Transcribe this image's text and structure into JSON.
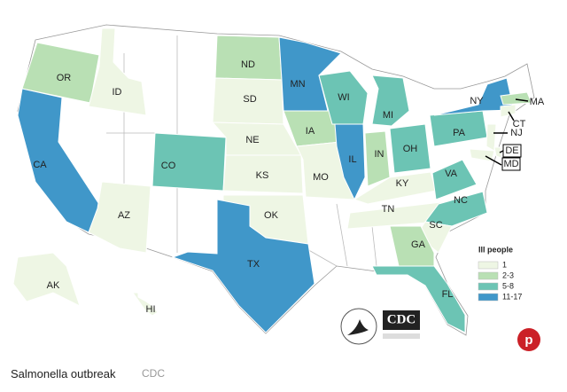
{
  "map": {
    "states": [
      {
        "label": "OR",
        "color": "#b9e0b4"
      },
      {
        "label": "ID",
        "color": "#eef6e4"
      },
      {
        "label": "CA",
        "color": "#4097c9"
      },
      {
        "label": "AZ",
        "color": "#eef6e4"
      },
      {
        "label": "CO",
        "color": "#6cc4b4"
      },
      {
        "label": "ND",
        "color": "#b9e0b4"
      },
      {
        "label": "SD",
        "color": "#eef6e4"
      },
      {
        "label": "NE",
        "color": "#eef6e4"
      },
      {
        "label": "KS",
        "color": "#eef6e4"
      },
      {
        "label": "OK",
        "color": "#eef6e4"
      },
      {
        "label": "TX",
        "color": "#4097c9"
      },
      {
        "label": "MN",
        "color": "#4097c9"
      },
      {
        "label": "IA",
        "color": "#b9e0b4"
      },
      {
        "label": "MO",
        "color": "#eef6e4"
      },
      {
        "label": "WI",
        "color": "#6cc4b4"
      },
      {
        "label": "IL",
        "color": "#4097c9"
      },
      {
        "label": "MI",
        "color": "#6cc4b4"
      },
      {
        "label": "IN",
        "color": "#b9e0b4"
      },
      {
        "label": "OH",
        "color": "#6cc4b4"
      },
      {
        "label": "KY",
        "color": "#eef6e4"
      },
      {
        "label": "TN",
        "color": "#eef6e4"
      },
      {
        "label": "VA",
        "color": "#6cc4b4"
      },
      {
        "label": "NC",
        "color": "#6cc4b4"
      },
      {
        "label": "SC",
        "color": "#eef6e4"
      },
      {
        "label": "GA",
        "color": "#b9e0b4"
      },
      {
        "label": "FL",
        "color": "#6cc4b4"
      },
      {
        "label": "PA",
        "color": "#6cc4b4"
      },
      {
        "label": "NY",
        "color": "#4097c9"
      },
      {
        "label": "NJ",
        "color": "#eef6e4"
      },
      {
        "label": "DE",
        "color": "#eef6e4"
      },
      {
        "label": "MD",
        "color": "#eef6e4"
      },
      {
        "label": "CT",
        "color": "#eef6e4"
      },
      {
        "label": "MA",
        "color": "#b9e0b4"
      },
      {
        "label": "AK",
        "color": "#eef6e4"
      },
      {
        "label": "HI",
        "color": "#eef6e4"
      }
    ],
    "legend": {
      "title": "Ill people",
      "items": [
        {
          "label": "1",
          "color": "#eef6e4"
        },
        {
          "label": "2-3",
          "color": "#b9e0b4"
        },
        {
          "label": "5-8",
          "color": "#6cc4b4"
        },
        {
          "label": "11-17",
          "color": "#4097c9"
        }
      ]
    },
    "logo": "CDC"
  },
  "caption": {
    "title": "Salmonella outbreak",
    "credit": "CDC"
  }
}
